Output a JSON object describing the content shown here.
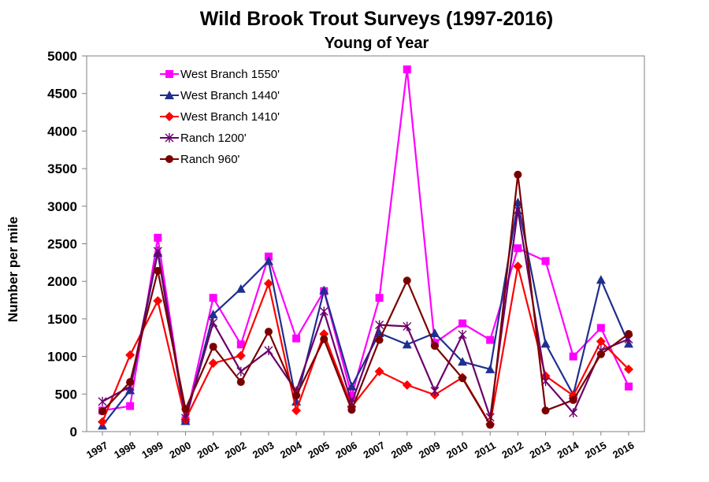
{
  "chart_data": {
    "type": "line",
    "title": "Wild Brook Trout Surveys (1997-2016)",
    "subtitle": "Young of Year",
    "xlabel": "",
    "ylabel": "Number per mile",
    "ylim": [
      0,
      5000
    ],
    "yticks": [
      0,
      500,
      1000,
      1500,
      2000,
      2500,
      3000,
      3500,
      4000,
      4500,
      5000
    ],
    "categories": [
      "1997",
      "1998",
      "1999",
      "2000",
      "2001",
      "2002",
      "2003",
      "2004",
      "2005",
      "2006",
      "2007",
      "2008",
      "2009",
      "2010",
      "2011",
      "2012",
      "2013",
      "2014",
      "2015",
      "2016"
    ],
    "legend_position": "top-left",
    "series": [
      {
        "name": "West Branch 1550'",
        "color": "#ff00ff",
        "marker": "square",
        "values": [
          280,
          340,
          2580,
          150,
          1780,
          1160,
          2330,
          1240,
          1870,
          480,
          1780,
          4820,
          1180,
          1440,
          1220,
          2440,
          2270,
          1000,
          1380,
          600
        ]
      },
      {
        "name": "West Branch 1440'",
        "color": "#1f2f8f",
        "marker": "triangle",
        "values": [
          80,
          550,
          2380,
          140,
          1560,
          1900,
          2270,
          400,
          1880,
          600,
          1310,
          1160,
          1310,
          930,
          830,
          3050,
          1170,
          490,
          2020,
          1170
        ]
      },
      {
        "name": "West Branch 1410'",
        "color": "#ff0000",
        "marker": "diamond",
        "values": [
          130,
          1020,
          1740,
          160,
          910,
          1010,
          1970,
          280,
          1300,
          330,
          800,
          620,
          490,
          720,
          100,
          2200,
          740,
          480,
          1200,
          830
        ]
      },
      {
        "name": "Ranch 1200'",
        "color": "#6a006a",
        "marker": "star",
        "values": [
          400,
          600,
          2400,
          180,
          1450,
          800,
          1080,
          540,
          1600,
          380,
          1420,
          1400,
          540,
          1290,
          190,
          2950,
          670,
          250,
          1080,
          1230
        ]
      },
      {
        "name": "Ranch 960'",
        "color": "#7a0000",
        "marker": "circle",
        "values": [
          270,
          660,
          2140,
          300,
          1130,
          660,
          1330,
          480,
          1230,
          290,
          1220,
          2010,
          1140,
          710,
          90,
          3420,
          280,
          420,
          1030,
          1300
        ]
      }
    ]
  }
}
